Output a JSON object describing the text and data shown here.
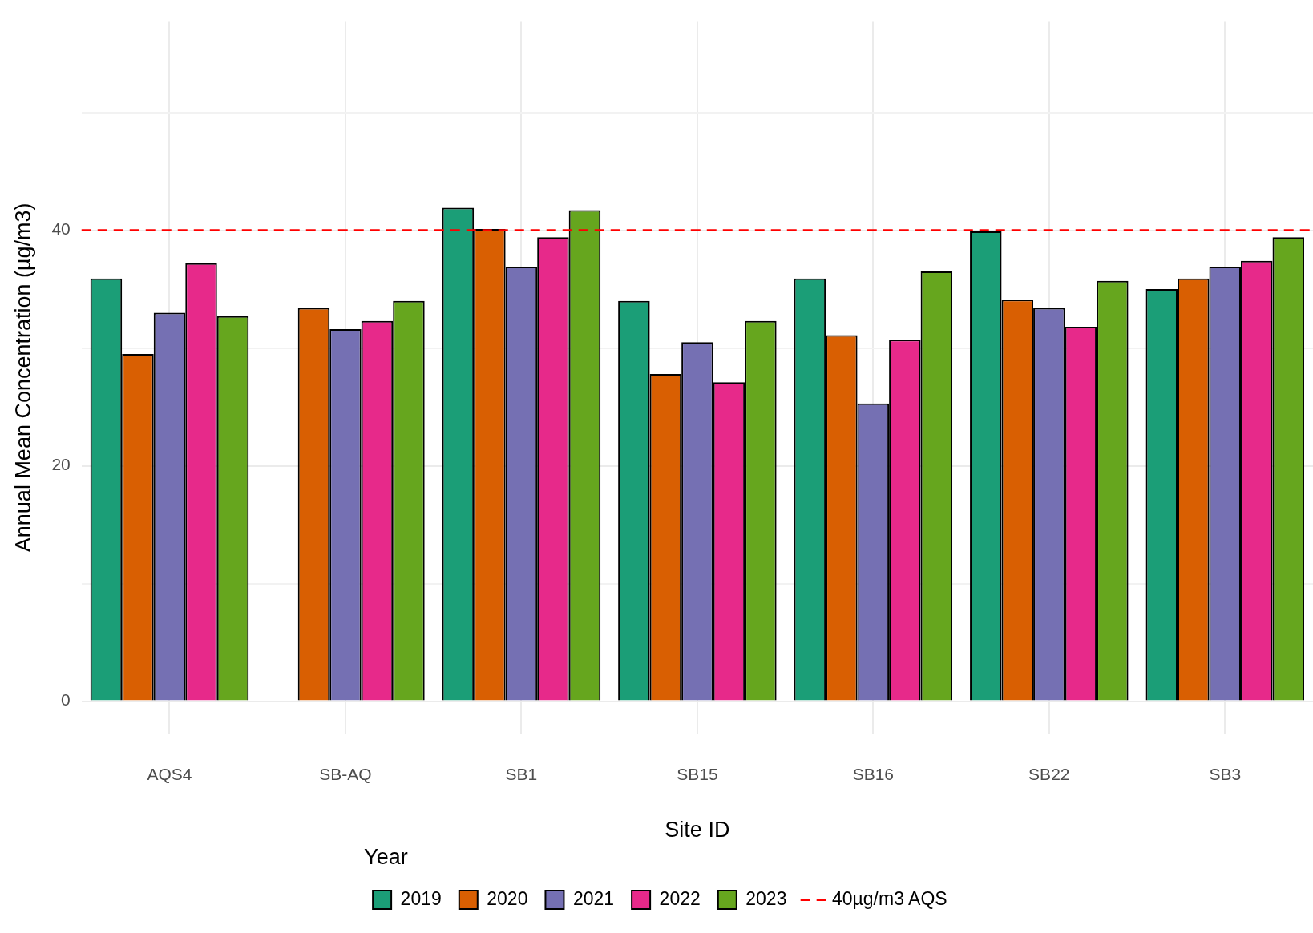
{
  "chart_data": {
    "type": "bar",
    "xlabel": "Site ID",
    "ylabel": "Annual Mean Concentration (µg/m3)",
    "legend_title": "Year",
    "categories": [
      "AQS4",
      "SB-AQ",
      "SB1",
      "SB15",
      "SB16",
      "SB22",
      "SB3"
    ],
    "series": [
      {
        "name": "2019",
        "color": "#1b9e77",
        "values": [
          35.9,
          null,
          41.9,
          34.0,
          35.9,
          39.9,
          35.0
        ]
      },
      {
        "name": "2020",
        "color": "#d95f02",
        "values": [
          29.5,
          33.4,
          40.1,
          27.8,
          31.1,
          34.1,
          35.9
        ]
      },
      {
        "name": "2021",
        "color": "#7570b3",
        "values": [
          33.0,
          31.6,
          36.9,
          30.5,
          25.3,
          33.4,
          36.9
        ]
      },
      {
        "name": "2022",
        "color": "#e7298a",
        "values": [
          37.2,
          32.3,
          39.4,
          27.1,
          30.7,
          31.8,
          37.4
        ]
      },
      {
        "name": "2023",
        "color": "#66a61e",
        "values": [
          32.7,
          34.0,
          41.7,
          32.3,
          36.5,
          35.7,
          39.4
        ]
      }
    ],
    "ylim": [
      -2.75,
      57.75
    ],
    "yticks": [
      0,
      {
        "value": 10,
        "label": null
      },
      20,
      {
        "value": 30,
        "label": null
      },
      40,
      {
        "value": 50,
        "label": null
      }
    ],
    "ref_lines": [
      {
        "axis": "y",
        "value": 40,
        "label": "40µg/m3 AQS",
        "color": "#ff0000",
        "line_style": "dashed"
      }
    ],
    "grid": true,
    "legend": "bottom"
  }
}
